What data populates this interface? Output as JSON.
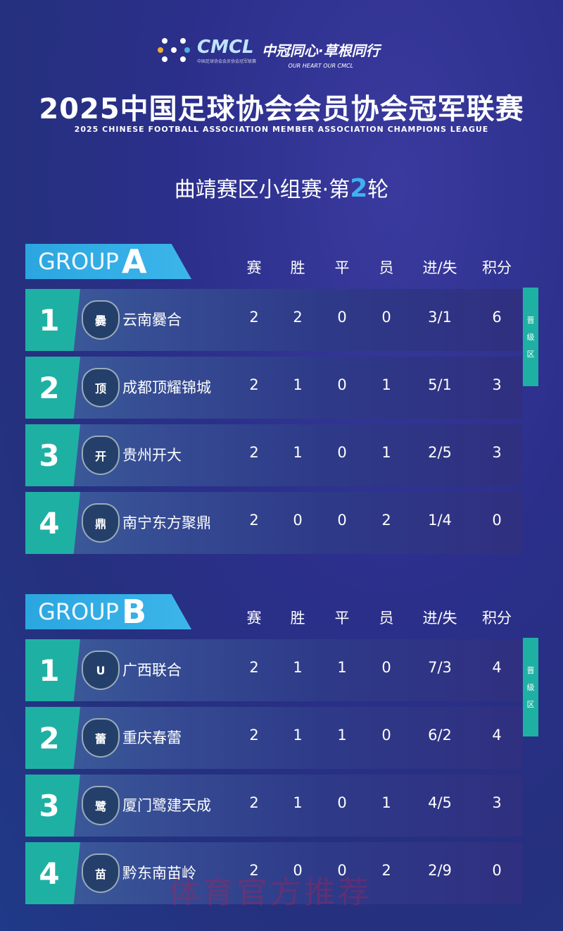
{
  "header": {
    "logo_text": "CMCL",
    "logo_subtext": "中国足球协会会员协会冠军联赛",
    "slogan_cn": "中冠同心·草根同行",
    "slogan_en": "OUR HEART OUR CMCL",
    "title": "2025中国足球协会会员协会冠军联赛",
    "title_en": "2025 CHINESE FOOTBALL ASSOCIATION MEMBER ASSOCIATION CHAMPIONS LEAGUE",
    "round_prefix": "曲靖赛区小组赛·第",
    "round_num": "2",
    "round_suffix": "轮"
  },
  "columns": [
    "赛",
    "胜",
    "平",
    "员",
    "进/失",
    "积分"
  ],
  "advance_label": [
    "晋",
    "级",
    "区"
  ],
  "groups": [
    {
      "label": "GROUP",
      "letter": "A",
      "rows": [
        {
          "rank": "1",
          "team": "云南爨合",
          "badge": "爨",
          "stats": [
            "2",
            "2",
            "0",
            "0",
            "3/1",
            "6"
          ]
        },
        {
          "rank": "2",
          "team": "成都顶耀锦城",
          "badge": "顶",
          "stats": [
            "2",
            "1",
            "0",
            "1",
            "5/1",
            "3"
          ]
        },
        {
          "rank": "3",
          "team": "贵州开大",
          "badge": "开",
          "stats": [
            "2",
            "1",
            "0",
            "1",
            "2/5",
            "3"
          ]
        },
        {
          "rank": "4",
          "team": "南宁东方聚鼎",
          "badge": "鼎",
          "stats": [
            "2",
            "0",
            "0",
            "2",
            "1/4",
            "0"
          ]
        }
      ]
    },
    {
      "label": "GROUP",
      "letter": "B",
      "rows": [
        {
          "rank": "1",
          "team": "广西联合",
          "badge": "U",
          "stats": [
            "2",
            "1",
            "1",
            "0",
            "7/3",
            "4"
          ]
        },
        {
          "rank": "2",
          "team": "重庆春蕾",
          "badge": "蕾",
          "stats": [
            "2",
            "1",
            "1",
            "0",
            "6/2",
            "4"
          ]
        },
        {
          "rank": "3",
          "team": "厦门鹭建天成",
          "badge": "鹭",
          "stats": [
            "2",
            "1",
            "0",
            "1",
            "4/5",
            "3"
          ]
        },
        {
          "rank": "4",
          "team": "黔东南苗岭",
          "badge": "苗",
          "stats": [
            "2",
            "0",
            "0",
            "2",
            "2/9",
            "0"
          ]
        }
      ]
    }
  ],
  "watermark": "体育官方推荐",
  "colors": {
    "background": "#2b2f8a",
    "teal": "#1fb0a4",
    "banner": "#2ba6e0",
    "accent": "#3fb2ee"
  }
}
